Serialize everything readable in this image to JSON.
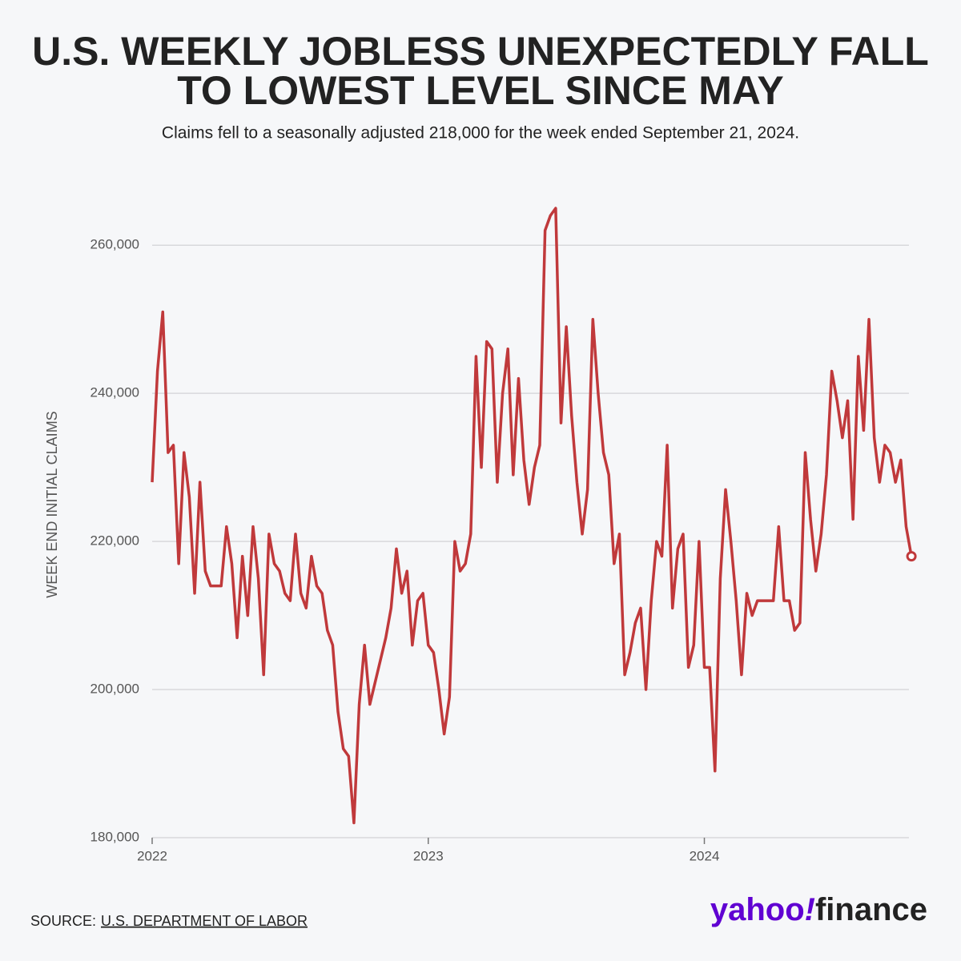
{
  "chart_data": {
    "type": "line",
    "title": [
      "U.S. WEEKLY JOBLESS UNEXPECTEDLY FALL",
      "TO LOWEST LEVEL SINCE MAY"
    ],
    "subtitle": "Claims fell to a seasonally adjusted 218,000 for the week ended September 21, 2024.",
    "ylabel": "WEEK END INITIAL CLAIMS",
    "source_label": "SOURCE:",
    "source": "U.S. DEPARTMENT OF LABOR",
    "logo": [
      "yahoo",
      "!",
      "finance"
    ],
    "color": "#c0393b",
    "grid": true,
    "ylim": [
      180000,
      265000
    ],
    "yticks": [
      {
        "value": 180000,
        "label": "180,000"
      },
      {
        "value": 200000,
        "label": "200,000"
      },
      {
        "value": 220000,
        "label": "220,000"
      },
      {
        "value": 240000,
        "label": "240,000"
      },
      {
        "value": 260000,
        "label": "260,000"
      }
    ],
    "categories": [
      "2022",
      null,
      null,
      null,
      null,
      null,
      null,
      null,
      null,
      null,
      null,
      null,
      null,
      null,
      null,
      null,
      null,
      null,
      null,
      null,
      null,
      null,
      null,
      null,
      null,
      null,
      null,
      null,
      null,
      null,
      null,
      null,
      null,
      null,
      null,
      null,
      null,
      null,
      null,
      null,
      null,
      null,
      null,
      null,
      null,
      null,
      null,
      null,
      null,
      null,
      null,
      null,
      "2023",
      null,
      null,
      null,
      null,
      null,
      null,
      null,
      null,
      null,
      null,
      null,
      null,
      null,
      null,
      null,
      null,
      null,
      null,
      null,
      null,
      null,
      null,
      null,
      null,
      null,
      null,
      null,
      null,
      null,
      null,
      null,
      null,
      null,
      null,
      null,
      null,
      null,
      null,
      null,
      null,
      null,
      null,
      null,
      null,
      null,
      null,
      null,
      null,
      null,
      null,
      null,
      "2024",
      null,
      null,
      null,
      null,
      null,
      null,
      null,
      null,
      null,
      null,
      null,
      null,
      null,
      null,
      null,
      null,
      null,
      null,
      null,
      null,
      null,
      null,
      null,
      null,
      null,
      null,
      null,
      null,
      null,
      null,
      null,
      null,
      null,
      null,
      null,
      null,
      null,
      null,
      null
    ],
    "values": [
      228000,
      243000,
      251000,
      232000,
      233000,
      217000,
      232000,
      226000,
      213000,
      228000,
      216000,
      214000,
      214000,
      214000,
      222000,
      217000,
      207000,
      218000,
      210000,
      222000,
      215000,
      202000,
      221000,
      217000,
      216000,
      213000,
      212000,
      221000,
      213000,
      211000,
      218000,
      214000,
      213000,
      208000,
      206000,
      197000,
      192000,
      191000,
      182000,
      198000,
      206000,
      198000,
      201000,
      204000,
      207000,
      211000,
      219000,
      213000,
      216000,
      206000,
      212000,
      213000,
      206000,
      205000,
      200000,
      194000,
      199000,
      220000,
      216000,
      217000,
      221000,
      245000,
      230000,
      247000,
      246000,
      228000,
      240000,
      246000,
      229000,
      242000,
      231000,
      225000,
      230000,
      233000,
      262000,
      264000,
      265000,
      236000,
      249000,
      237000,
      228000,
      221000,
      227000,
      250000,
      240000,
      232000,
      229000,
      217000,
      221000,
      202000,
      205000,
      209000,
      211000,
      200000,
      212000,
      220000,
      218000,
      233000,
      211000,
      219000,
      221000,
      203000,
      206000,
      220000,
      203000,
      203000,
      189000,
      215000,
      227000,
      220000,
      212000,
      202000,
      213000,
      210000,
      212000,
      212000,
      212000,
      212000,
      222000,
      212000,
      212000,
      208000,
      209000,
      232000,
      223000,
      216000,
      221000,
      229000,
      243000,
      239000,
      234000,
      239000,
      223000,
      245000,
      235000,
      250000,
      234000,
      228000,
      233000,
      232000,
      228000,
      231000,
      222000,
      218000
    ]
  }
}
